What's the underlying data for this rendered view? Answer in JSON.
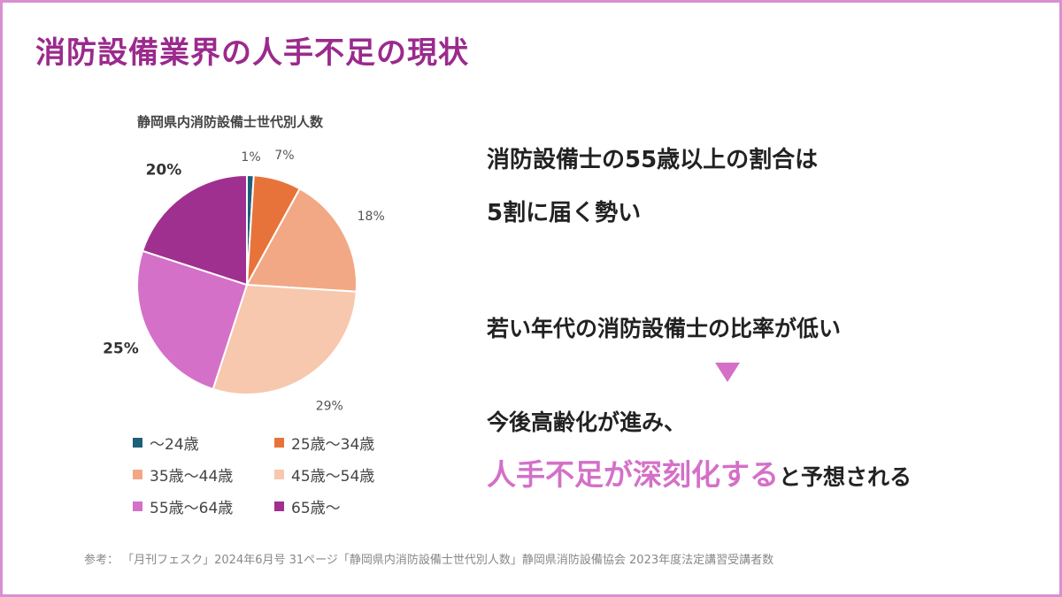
{
  "slide": {
    "title": "消防設備業界の人手不足の現状",
    "footer": "参考： 「月刊フェスク」2024年6月号 31ページ「静岡県内消防設備士世代別人数」静岡県消防設備協会 2023年度法定講習受講者数"
  },
  "messages": {
    "line1": "消防設備士の55歳以上の割合は",
    "line2": "5割に届く勢い",
    "line3": "若い年代の消防設備士の比率が低い",
    "line4": "今後高齢化が進み、",
    "line5_highlight": "人手不足が深刻化する",
    "line5_rest": "と予想される",
    "accent_color": "#d470c8"
  },
  "chart_data": {
    "type": "pie",
    "title": "静岡県内消防設備士世代別人数",
    "categories": [
      "〜24歳",
      "25歳〜34歳",
      "35歳〜44歳",
      "45歳〜54歳",
      "55歳〜64歳",
      "65歳〜"
    ],
    "values": [
      1,
      7,
      18,
      29,
      25,
      20
    ],
    "labels": [
      "1%",
      "7%",
      "18%",
      "29%",
      "25%",
      "20%"
    ],
    "colors": [
      "#1f5f7a",
      "#e8733a",
      "#f2a885",
      "#f7c8ad",
      "#d470c8",
      "#a0308f"
    ],
    "start_angle": "12 o'clock",
    "direction": "clockwise",
    "legend_position": "bottom"
  }
}
